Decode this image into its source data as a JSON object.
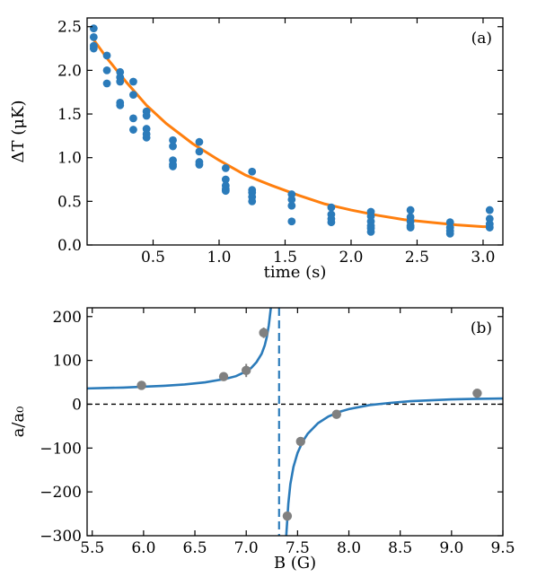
{
  "chart_data": [
    {
      "type": "scatter",
      "panel_label": "(a)",
      "xlabel": "time (s)",
      "ylabel": "ΔT (μK)",
      "xlim": [
        0,
        3.15
      ],
      "ylim": [
        0.0,
        2.6
      ],
      "xticks": [
        0.5,
        1.0,
        1.5,
        2.0,
        2.5,
        3.0
      ],
      "xtick_labels": [
        "0.5",
        "1.0",
        "1.5",
        "2.0",
        "2.5",
        "3.0"
      ],
      "yticks": [
        0.0,
        0.5,
        1.0,
        1.5,
        2.0,
        2.5
      ],
      "ytick_labels": [
        "0.0",
        "0.5",
        "1.0",
        "1.5",
        "2.0",
        "2.5"
      ],
      "grid": false,
      "colors": {
        "points": "#2b7bba",
        "fit": "#ff7f0e"
      },
      "series": [
        {
          "kind": "points",
          "x": [
            0.05,
            0.05,
            0.05,
            0.05,
            0.15,
            0.15,
            0.15,
            0.25,
            0.25,
            0.25,
            0.25,
            0.25,
            0.35,
            0.35,
            0.35,
            0.35,
            0.45,
            0.45,
            0.45,
            0.45,
            0.45,
            0.65,
            0.65,
            0.65,
            0.65,
            0.65,
            0.85,
            0.85,
            0.85,
            0.85,
            1.05,
            1.05,
            1.05,
            1.05,
            1.05,
            1.25,
            1.25,
            1.25,
            1.25,
            1.25,
            1.55,
            1.55,
            1.55,
            1.55,
            1.85,
            1.85,
            1.85,
            1.85,
            2.15,
            2.15,
            2.15,
            2.15,
            2.15,
            2.15,
            2.45,
            2.45,
            2.45,
            2.45,
            2.45,
            2.75,
            2.75,
            2.75,
            2.75,
            3.05,
            3.05,
            3.05,
            3.05
          ],
          "y": [
            2.48,
            2.38,
            2.28,
            2.25,
            2.17,
            2.0,
            1.85,
            1.98,
            1.92,
            1.87,
            1.63,
            1.6,
            1.87,
            1.72,
            1.45,
            1.32,
            1.53,
            1.48,
            1.33,
            1.27,
            1.23,
            1.2,
            1.13,
            0.97,
            0.92,
            0.9,
            1.18,
            1.07,
            0.95,
            0.92,
            0.88,
            0.75,
            0.68,
            0.64,
            0.62,
            0.84,
            0.63,
            0.6,
            0.55,
            0.5,
            0.58,
            0.52,
            0.45,
            0.27,
            0.43,
            0.35,
            0.3,
            0.26,
            0.38,
            0.33,
            0.27,
            0.22,
            0.19,
            0.15,
            0.4,
            0.32,
            0.27,
            0.22,
            0.2,
            0.26,
            0.2,
            0.16,
            0.13,
            0.4,
            0.3,
            0.24,
            0.2
          ]
        },
        {
          "kind": "fit",
          "x": [
            0.05,
            0.15,
            0.3,
            0.45,
            0.6,
            0.8,
            1.0,
            1.2,
            1.4,
            1.6,
            1.8,
            2.0,
            2.2,
            2.4,
            2.6,
            2.8,
            3.0,
            3.05
          ],
          "y": [
            2.35,
            2.14,
            1.86,
            1.6,
            1.39,
            1.16,
            0.97,
            0.8,
            0.68,
            0.57,
            0.47,
            0.4,
            0.34,
            0.29,
            0.26,
            0.23,
            0.21,
            0.21
          ]
        }
      ]
    },
    {
      "type": "scatter",
      "panel_label": "(b)",
      "xlabel": "B (G)",
      "ylabel": "a/a₀",
      "xlim": [
        5.45,
        9.5
      ],
      "ylim": [
        -300,
        220
      ],
      "xticks": [
        5.5,
        6.0,
        6.5,
        7.0,
        7.5,
        8.0,
        8.5,
        9.0,
        9.5
      ],
      "xtick_labels": [
        "5.5",
        "6.0",
        "6.5",
        "7.0",
        "7.5",
        "8.0",
        "8.5",
        "9.0",
        "9.5"
      ],
      "yticks": [
        -300,
        -200,
        -100,
        0,
        100,
        200
      ],
      "ytick_labels": [
        "−300",
        "−200",
        "−100",
        "0",
        "100",
        "200"
      ],
      "grid": false,
      "resonance_B": 7.32,
      "colors": {
        "points": "#808080",
        "fit": "#2b7bba",
        "resonance": "#2b7bba",
        "zero_line": "#000000"
      },
      "series": [
        {
          "kind": "points_with_errors",
          "x": [
            5.98,
            6.78,
            7.0,
            7.17,
            7.4,
            7.53,
            7.88,
            9.25
          ],
          "y": [
            43,
            63,
            77,
            163,
            -255,
            -85,
            -23,
            25
          ],
          "yerr": [
            4,
            6,
            15,
            12,
            10,
            6,
            5,
            4
          ]
        },
        {
          "kind": "fit",
          "x": [
            5.45,
            5.6,
            5.8,
            6.0,
            6.2,
            6.4,
            6.6,
            6.8,
            6.9,
            7.0,
            7.05,
            7.1,
            7.15,
            7.18,
            7.2,
            7.22,
            7.24
          ],
          "y": [
            36,
            37,
            38,
            40,
            42,
            45,
            50,
            58,
            64,
            75,
            83,
            96,
            115,
            134,
            153,
            180,
            220
          ]
        },
        {
          "kind": "fit",
          "x": [
            7.39,
            7.41,
            7.43,
            7.46,
            7.5,
            7.55,
            7.6,
            7.7,
            7.8,
            7.9,
            8.0,
            8.2,
            8.4,
            8.6,
            8.8,
            9.0,
            9.2,
            9.5
          ],
          "y": [
            -300,
            -227,
            -182,
            -143,
            -111,
            -85,
            -67,
            -43,
            -28,
            -18,
            -11,
            -2,
            3,
            7,
            9,
            11,
            12,
            13
          ]
        }
      ]
    }
  ]
}
